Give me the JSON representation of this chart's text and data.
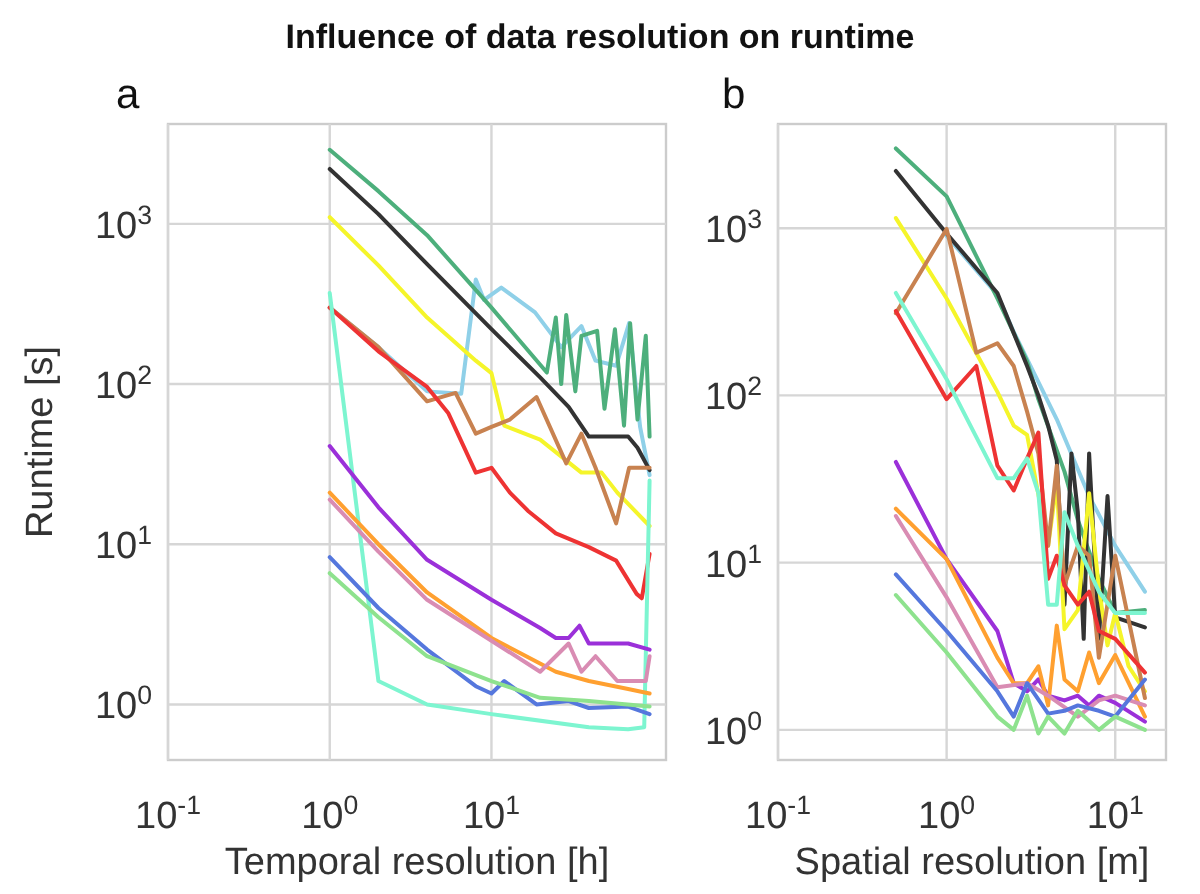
{
  "chart_data": [
    {
      "type": "line",
      "title": "Influence of data resolution on runtime",
      "subtitle": "a",
      "xlabel": "Temporal resolution [h]",
      "ylabel": "Runtime [s]",
      "log": "xy",
      "grid": true,
      "xlim": [
        0.1,
        120
      ],
      "ylim": [
        0.45,
        4200
      ],
      "xticks": [
        {
          "value": 0.1,
          "label": "10$^{-1}$"
        },
        {
          "value": 1,
          "label": "10$^{0}$"
        },
        {
          "value": 10,
          "label": "10$^{1}$"
        }
      ],
      "yticks": [
        {
          "value": 1,
          "label": "10$^{0}$"
        },
        {
          "value": 10,
          "label": "10$^{1}$"
        },
        {
          "value": 100,
          "label": "10$^{2}$"
        },
        {
          "value": 1000,
          "label": "10$^{3}$"
        }
      ],
      "series": [
        {
          "color": "#8fd0e8",
          "x": [
            1,
            2,
            4,
            6.5,
            8,
            9,
            11.5,
            18.6,
            27,
            36,
            44,
            59,
            71,
            83,
            95
          ],
          "values": [
            300,
            170,
            90,
            87,
            450,
            335,
            400,
            280,
            170,
            230,
            140,
            130,
            240,
            54,
            27
          ]
        },
        {
          "color": "#4daf7c",
          "x": [
            1,
            2,
            4,
            10,
            22,
            25,
            27,
            29,
            33,
            36,
            45,
            50,
            58,
            66,
            72,
            80,
            90,
            95
          ],
          "values": [
            2900,
            1600,
            850,
            300,
            118,
            260,
            100,
            270,
            90,
            200,
            215,
            70,
            220,
            55,
            240,
            60,
            200,
            47
          ]
        },
        {
          "color": "#333333",
          "x": [
            1,
            2,
            4,
            10,
            20,
            30,
            40,
            70,
            80,
            95
          ],
          "values": [
            2200,
            1150,
            560,
            220,
            110,
            72,
            47,
            47,
            40,
            29
          ]
        },
        {
          "color": "#f5f52a",
          "x": [
            1,
            2,
            4,
            8,
            10,
            12,
            20,
            36,
            48,
            60,
            95
          ],
          "values": [
            1100,
            550,
            260,
            140,
            117,
            55,
            45,
            28,
            28,
            21,
            13
          ]
        },
        {
          "color": "#c88250",
          "x": [
            1,
            2,
            4,
            6,
            8,
            10,
            13,
            19,
            29,
            36,
            44,
            59,
            71,
            95
          ],
          "values": [
            300,
            170,
            78,
            88,
            49,
            54,
            60,
            83,
            32,
            49,
            30,
            13.5,
            30,
            30
          ]
        },
        {
          "color": "#ee3333",
          "x": [
            1,
            2,
            4,
            5.4,
            8,
            10,
            13,
            17,
            25,
            40,
            59,
            79,
            85,
            95
          ],
          "values": [
            300,
            160,
            96,
            66,
            28,
            30,
            21,
            16,
            11.7,
            9.6,
            7.9,
            4.9,
            4.6,
            8.7
          ]
        },
        {
          "color": "#7df5d0",
          "x": [
            1,
            2,
            4,
            10,
            40,
            70,
            88,
            95
          ],
          "values": [
            370,
            1.4,
            1.0,
            0.87,
            0.72,
            0.7,
            0.72,
            25
          ]
        },
        {
          "color": "#9b30d9",
          "x": [
            1,
            2,
            4,
            10,
            20,
            25,
            30,
            35,
            40,
            70,
            95
          ],
          "values": [
            41,
            17,
            8,
            4.5,
            3.0,
            2.6,
            2.6,
            3.1,
            2.4,
            2.4,
            2.2
          ]
        },
        {
          "color": "#ffa030",
          "x": [
            1,
            2,
            4,
            10,
            25,
            40,
            70,
            95
          ],
          "values": [
            21,
            10,
            5,
            2.6,
            1.6,
            1.4,
            1.25,
            1.17
          ]
        },
        {
          "color": "#d98cb3",
          "x": [
            1,
            2,
            4,
            10,
            20,
            30,
            36,
            44,
            60,
            90,
            95
          ],
          "values": [
            19,
            9,
            4.5,
            2.5,
            1.6,
            2.4,
            1.6,
            2.0,
            1.4,
            1.4,
            2.0
          ]
        },
        {
          "color": "#5577dd",
          "x": [
            1,
            2,
            4,
            8,
            10,
            12,
            19,
            30,
            40,
            70,
            95
          ],
          "values": [
            8.3,
            4,
            2.2,
            1.3,
            1.17,
            1.4,
            1.0,
            1.05,
            0.95,
            0.97,
            0.87
          ]
        },
        {
          "color": "#8ee28e",
          "x": [
            1,
            2,
            4,
            10,
            20,
            40,
            95
          ],
          "values": [
            6.6,
            3.5,
            2,
            1.4,
            1.1,
            1.05,
            0.97
          ]
        }
      ]
    },
    {
      "type": "line",
      "title": "b",
      "xlabel": "Spatial resolution [m]",
      "log": "xy",
      "grid": true,
      "xlim": [
        0.1,
        20
      ],
      "ylim": [
        0.66,
        4200
      ],
      "xticks": [
        {
          "value": 0.1,
          "label": "10$^{-1}$"
        },
        {
          "value": 1,
          "label": "10$^{0}$"
        },
        {
          "value": 10,
          "label": "10$^{1}$"
        }
      ],
      "yticks": [
        {
          "value": 1,
          "label": "10$^{0}$"
        },
        {
          "value": 10,
          "label": "10$^{1}$"
        },
        {
          "value": 100,
          "label": "10$^{2}$"
        },
        {
          "value": 1000,
          "label": "10$^{3}$"
        }
      ],
      "series": [
        {
          "color": "#8fd0e8",
          "x": [
            1,
            2,
            2.5,
            4.5,
            7,
            10,
            15
          ],
          "values": [
            900,
            400,
            240,
            72,
            25,
            12.6,
            6.7
          ]
        },
        {
          "color": "#4daf7c",
          "x": [
            0.5,
            1,
            2,
            3,
            3.5,
            5,
            6,
            8,
            10,
            15
          ],
          "values": [
            3000,
            1550,
            380,
            160,
            95,
            35,
            18,
            8,
            5,
            5.2
          ]
        },
        {
          "color": "#333333",
          "x": [
            0.5,
            1,
            2,
            3,
            3.5,
            4,
            4.5,
            5,
            5.5,
            6,
            6.5,
            7,
            8,
            9,
            10,
            15
          ],
          "values": [
            2200,
            930,
            410,
            150,
            100,
            66,
            41,
            5.6,
            45,
            20,
            3.5,
            45,
            3.5,
            25,
            4.7,
            4.1
          ]
        },
        {
          "color": "#f5f52a",
          "x": [
            0.5,
            1,
            2,
            2.5,
            3,
            4,
            4.5,
            5,
            6,
            7,
            8,
            9,
            10,
            12,
            15
          ],
          "values": [
            1150,
            380,
            105,
            66,
            58,
            12.6,
            30,
            4,
            5.2,
            26,
            7,
            3.2,
            5,
            2.4,
            1.7
          ]
        },
        {
          "color": "#c88250",
          "x": [
            0.5,
            1,
            1.5,
            2,
            2.5,
            3,
            3.5,
            4,
            4.5,
            5,
            6,
            7,
            8,
            10,
            15
          ],
          "values": [
            310,
            990,
            180,
            205,
            150,
            80,
            45,
            12.6,
            38,
            7.3,
            12.6,
            11,
            2.7,
            11,
            1.55
          ]
        },
        {
          "color": "#ee3333",
          "x": [
            0.5,
            1,
            1.5,
            2,
            2.5,
            3,
            3.5,
            4,
            4.5,
            5,
            6,
            7,
            8,
            10,
            15
          ],
          "values": [
            320,
            95,
            150,
            38,
            27,
            42,
            60,
            8,
            11,
            7.3,
            5.6,
            6.7,
            3.9,
            3.5,
            2.2
          ]
        },
        {
          "color": "#7df5d0",
          "x": [
            0.5,
            1,
            2,
            2.5,
            3,
            3.5,
            4,
            4.5,
            5,
            6,
            8,
            10,
            15
          ],
          "values": [
            410,
            125,
            32,
            32,
            42,
            26,
            5.6,
            5.6,
            20,
            12.6,
            6.7,
            5,
            5
          ]
        },
        {
          "color": "#9b30d9",
          "x": [
            0.5,
            1,
            2,
            2.5,
            3,
            3.5,
            4,
            5,
            6,
            7,
            8,
            10,
            15
          ],
          "values": [
            40,
            10.5,
            3.9,
            1.9,
            1.7,
            2.0,
            1.6,
            1.5,
            1.6,
            1.4,
            1.6,
            1.45,
            1.12
          ]
        },
        {
          "color": "#ffa030",
          "x": [
            0.5,
            1,
            2,
            2.5,
            3,
            3.5,
            4,
            4.5,
            5,
            6,
            7,
            8,
            10,
            15
          ],
          "values": [
            21,
            10.5,
            2.7,
            1.9,
            1.9,
            2.4,
            1.4,
            4.2,
            2.0,
            1.7,
            2.9,
            1.9,
            2.8,
            1.2
          ]
        },
        {
          "color": "#d98cb3",
          "x": [
            0.5,
            1,
            2,
            3,
            4,
            6,
            8,
            10,
            15
          ],
          "values": [
            19,
            6.2,
            1.8,
            1.9,
            1.6,
            1.2,
            1.5,
            1.6,
            1.4
          ]
        },
        {
          "color": "#5577dd",
          "x": [
            0.5,
            1,
            2,
            2.5,
            3,
            4,
            5,
            6,
            8,
            10,
            15
          ],
          "values": [
            8.5,
            3.9,
            1.7,
            1.2,
            1.9,
            1.25,
            1.3,
            1.4,
            1.3,
            1.2,
            2.0
          ]
        },
        {
          "color": "#8ee28e",
          "x": [
            0.5,
            1,
            2,
            2.5,
            3,
            3.5,
            4,
            5,
            6,
            8,
            10,
            15
          ],
          "values": [
            6.4,
            2.9,
            1.2,
            1.0,
            1.6,
            0.95,
            1.2,
            0.95,
            1.3,
            1.0,
            1.2,
            1.0
          ]
        }
      ]
    }
  ]
}
